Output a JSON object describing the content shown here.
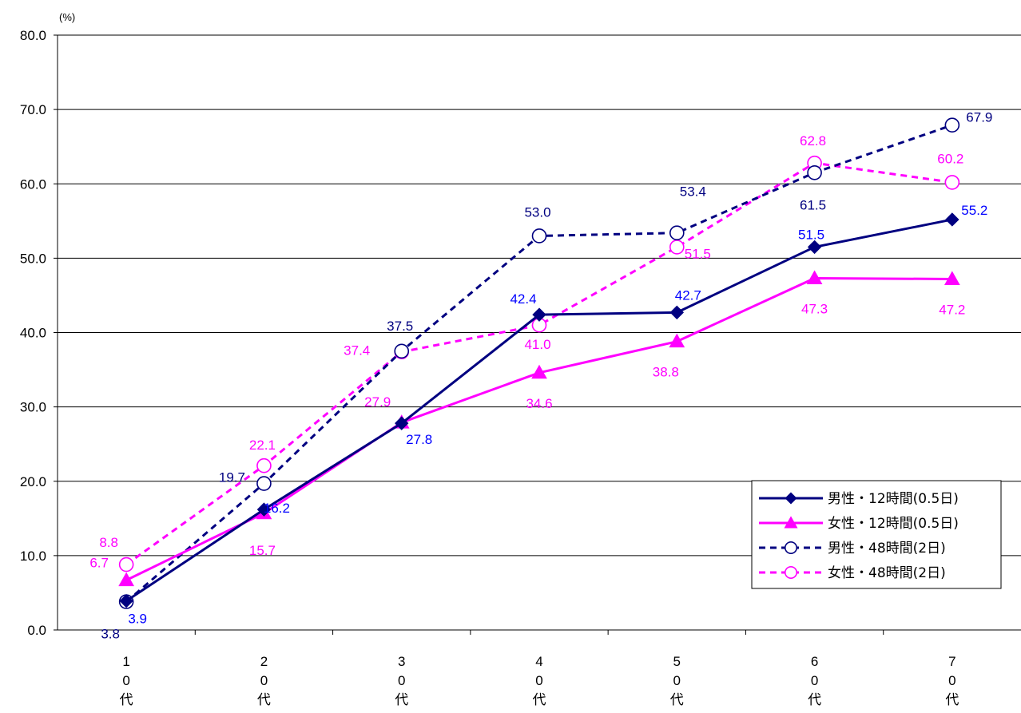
{
  "chart_data": {
    "type": "line",
    "unit_label": "(%)",
    "ylim": [
      0,
      80
    ],
    "yticks": [
      "0.0",
      "10.0",
      "20.0",
      "30.0",
      "40.0",
      "50.0",
      "60.0",
      "70.0",
      "80.0"
    ],
    "categories": [
      [
        "1",
        "0",
        "代"
      ],
      [
        "2",
        "0",
        "代"
      ],
      [
        "3",
        "0",
        "代"
      ],
      [
        "4",
        "0",
        "代"
      ],
      [
        "5",
        "0",
        "代"
      ],
      [
        "6",
        "0",
        "代"
      ],
      [
        "7",
        "0",
        "代"
      ]
    ],
    "grid": true,
    "legend_position": "bottom-right",
    "series": [
      {
        "name": "男性・12時間(0.5日)",
        "values": [
          3.9,
          16.2,
          27.8,
          42.4,
          42.7,
          51.5,
          55.2
        ],
        "color": "#000080",
        "label_color": "#0000ff",
        "line": "solid",
        "marker": "diamond",
        "labels": [
          "3.9",
          "16.2",
          "27.8",
          "42.4",
          "42.7",
          "51.5",
          "55.2"
        ]
      },
      {
        "name": "女性・12時間(0.5日)",
        "values": [
          6.7,
          15.7,
          27.9,
          34.6,
          38.8,
          47.3,
          47.2
        ],
        "color": "#ff00ff",
        "label_color": "#ff00ff",
        "line": "solid",
        "marker": "triangle",
        "labels": [
          "6.7",
          "15.7",
          "27.9",
          "34.6",
          "38.8",
          "47.3",
          "47.2"
        ]
      },
      {
        "name": "男性・48時間(2日)",
        "values": [
          3.8,
          19.7,
          37.5,
          53.0,
          53.4,
          61.5,
          67.9
        ],
        "color": "#000080",
        "label_color": "#000080",
        "line": "dashed",
        "marker": "circle",
        "labels": [
          "3.8",
          "19.7",
          "37.5",
          "53.0",
          "53.4",
          "61.5",
          "67.9"
        ]
      },
      {
        "name": "女性・48時間(2日)",
        "values": [
          8.8,
          22.1,
          37.4,
          41.0,
          51.5,
          62.8,
          60.2
        ],
        "color": "#ff00ff",
        "label_color": "#ff00ff",
        "line": "dashed",
        "marker": "circle",
        "labels": [
          "8.8",
          "22.1",
          "37.4",
          "41.0",
          "51.5",
          "62.8",
          "60.2"
        ]
      }
    ]
  }
}
